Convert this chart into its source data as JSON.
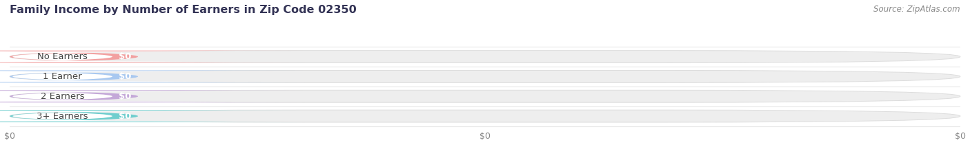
{
  "title": "Family Income by Number of Earners in Zip Code 02350",
  "source": "Source: ZipAtlas.com",
  "categories": [
    "No Earners",
    "1 Earner",
    "2 Earners",
    "3+ Earners"
  ],
  "values": [
    0,
    0,
    0,
    0
  ],
  "bar_colors": [
    "#f2a0a0",
    "#a8c8f0",
    "#c4a8d8",
    "#70cece"
  ],
  "background_color": "#ffffff",
  "bar_bg_color": "#eeeeee",
  "bar_bg_edge_color": "#dddddd",
  "title_color": "#333355",
  "source_color": "#888888",
  "label_text_color": "#444444",
  "value_text_color": "#ffffff",
  "tick_label_color": "#888888",
  "title_fontsize": 11.5,
  "source_fontsize": 8.5,
  "bar_label_fontsize": 9.5,
  "tick_fontsize": 9,
  "bar_height": 0.62,
  "xlim": [
    0,
    1
  ],
  "ylim": [
    -0.6,
    3.6
  ],
  "xtick_positions": [
    0.0,
    0.5,
    1.0
  ],
  "xtick_labels": [
    "$0",
    "$0",
    "$0"
  ],
  "separator_color": "#e8e8e8",
  "separator_linewidth": 0.8
}
